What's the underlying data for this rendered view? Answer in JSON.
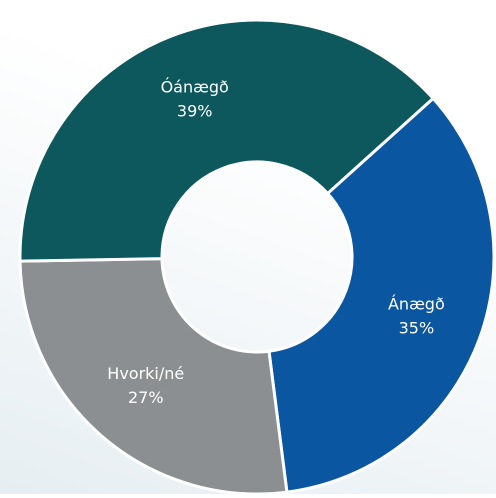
{
  "chart_data": {
    "type": "donut",
    "categories": [
      "Ánægð",
      "Hvorki/né",
      "Óánægð"
    ],
    "values": [
      35,
      27,
      39
    ],
    "value_labels": [
      "35%",
      "27%",
      "39%"
    ],
    "colors": [
      "#0a56a1",
      "#8b8f91",
      "#0d585c"
    ]
  }
}
